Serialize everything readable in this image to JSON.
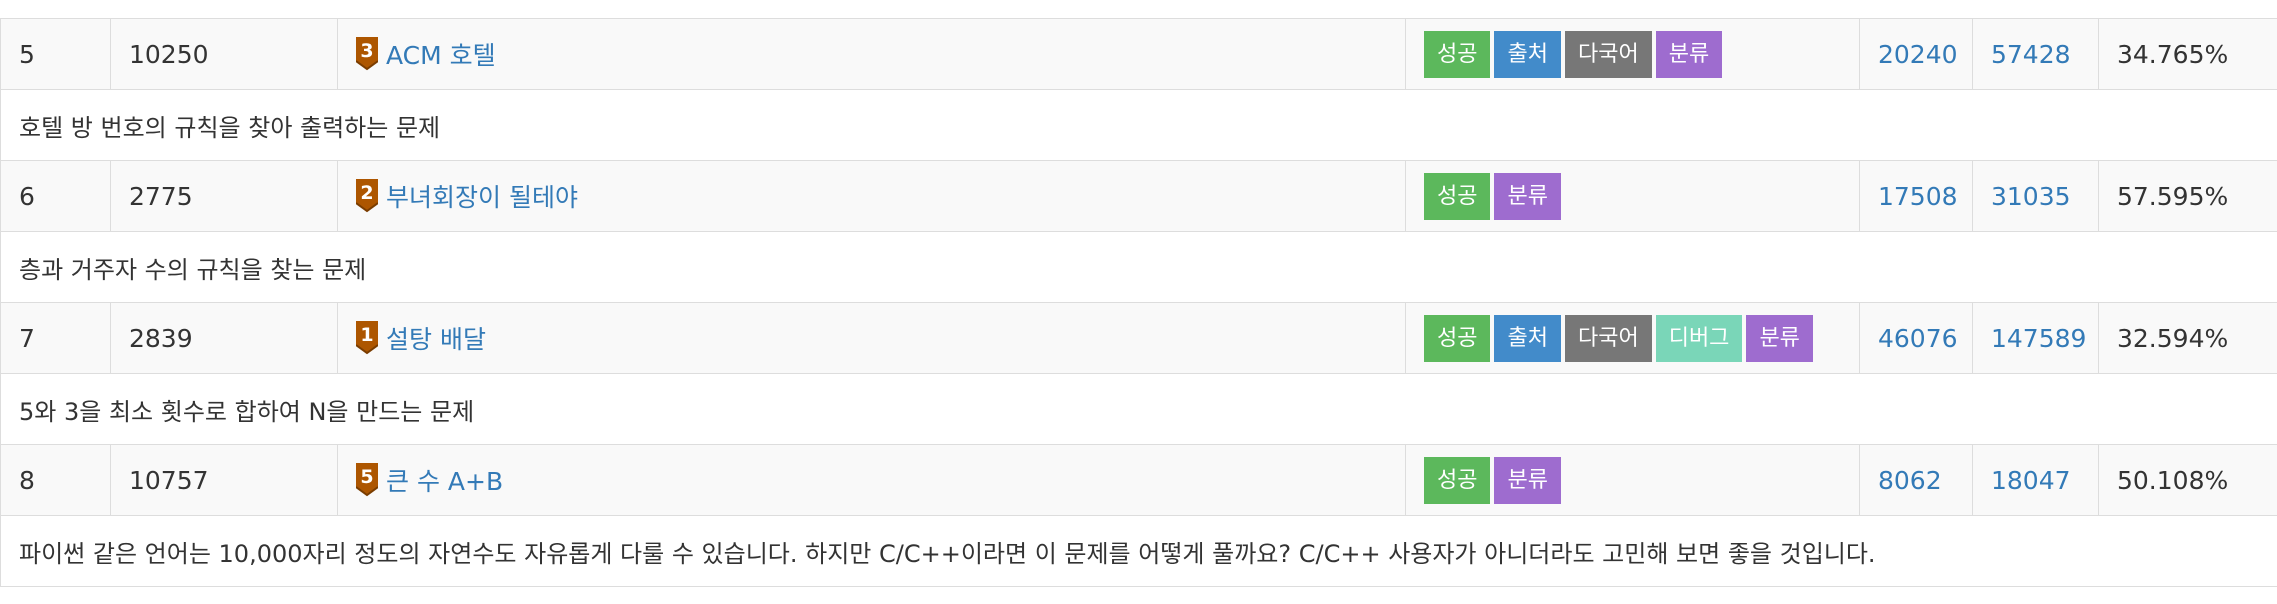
{
  "problems": [
    {
      "index": "5",
      "id": "10250",
      "tier": "3",
      "title": "ACM 호텔",
      "badges": [
        "성공",
        "출처",
        "다국어",
        "분류"
      ],
      "solved": "20240",
      "submissions": "57428",
      "ratio": "34.765%",
      "description": "호텔 방 번호의 규칙을 찾아 출력하는 문제"
    },
    {
      "index": "6",
      "id": "2775",
      "tier": "2",
      "title": "부녀회장이 될테야",
      "badges": [
        "성공",
        "분류"
      ],
      "solved": "17508",
      "submissions": "31035",
      "ratio": "57.595%",
      "description": "층과 거주자 수의 규칙을 찾는 문제"
    },
    {
      "index": "7",
      "id": "2839",
      "tier": "1",
      "title": "설탕 배달",
      "badges": [
        "성공",
        "출처",
        "다국어",
        "디버그",
        "분류"
      ],
      "solved": "46076",
      "submissions": "147589",
      "ratio": "32.594%",
      "description": "5와 3을 최소 횟수로 합하여 N을 만드는 문제"
    },
    {
      "index": "8",
      "id": "10757",
      "tier": "5",
      "title": "큰 수 A+B",
      "badges": [
        "성공",
        "분류"
      ],
      "solved": "8062",
      "submissions": "18047",
      "ratio": "50.108%",
      "description": "파이썬 같은 언어는 10,000자리 정도의 자연수도 자유롭게 다룰 수 있습니다. 하지만 C/C++이라면 이 문제를 어떻게 풀까요? C/C++ 사용자가 아니더라도 고민해 보면 좋을 것입니다."
    }
  ],
  "colors": {
    "link": "#337ab7",
    "tier_bronze": "#ad5600",
    "badge_success": "#5cb85c",
    "badge_source": "#428bca",
    "badge_multilang": "#777777",
    "badge_debug": "#7ad6b8",
    "badge_category": "#9e6ccf"
  },
  "icons": {
    "tier": "bronze-tier-icon"
  }
}
